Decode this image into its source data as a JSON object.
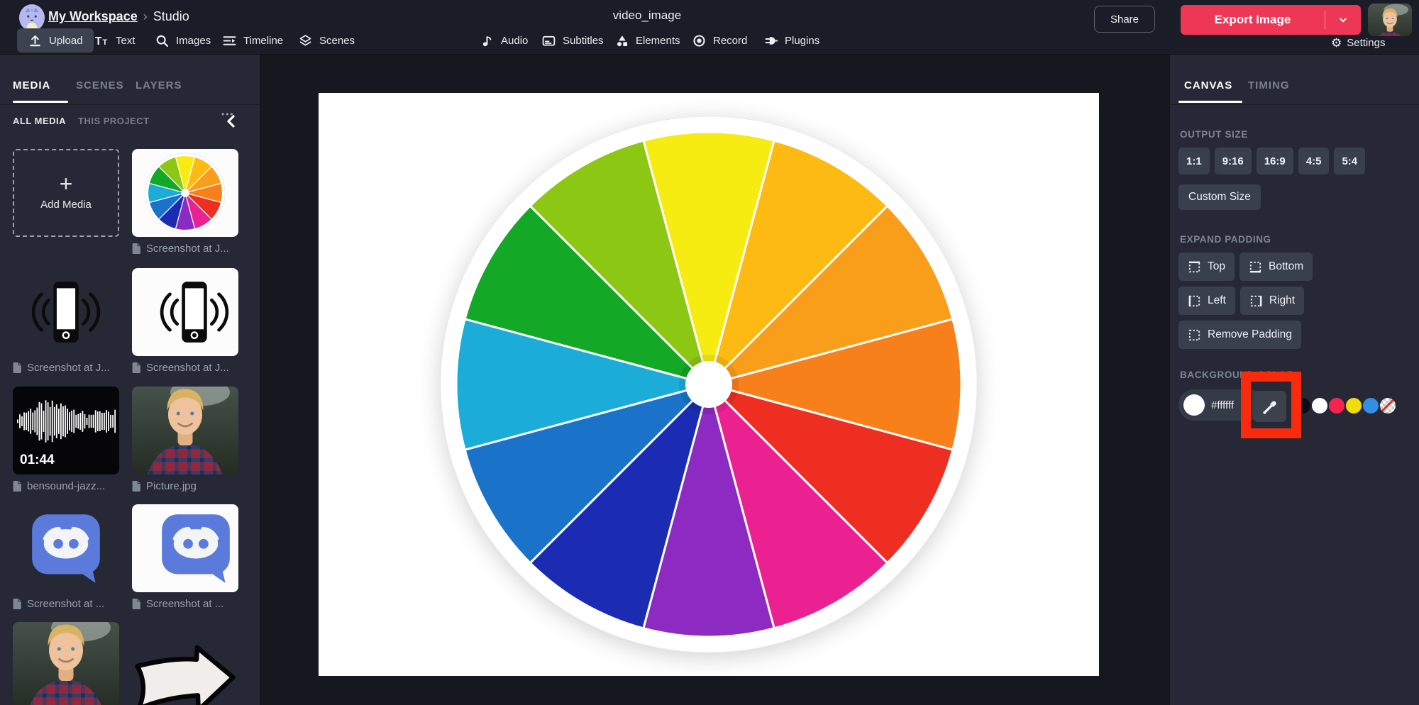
{
  "topbar": {
    "breadcrumb": {
      "workspace": "My Workspace",
      "separator": "›",
      "page": "Studio"
    },
    "title": "video_image",
    "share_label": "Share",
    "export_label": "Export Image",
    "settings_label": "Settings"
  },
  "icons": {
    "gear": "⚙"
  },
  "toolbar": {
    "items": [
      {
        "id": "upload",
        "label": "Upload",
        "icon": "upload-icon",
        "active": true
      },
      {
        "id": "text",
        "label": "Text",
        "icon": "text-icon"
      },
      {
        "id": "images",
        "label": "Images",
        "icon": "search-icon"
      },
      {
        "id": "timeline",
        "label": "Timeline",
        "icon": "timeline-icon"
      },
      {
        "id": "scenes",
        "label": "Scenes",
        "icon": "scenes-icon"
      },
      {
        "id": "audio",
        "label": "Audio",
        "icon": "audio-icon"
      },
      {
        "id": "subtitles",
        "label": "Subtitles",
        "icon": "subtitles-icon"
      },
      {
        "id": "elements",
        "label": "Elements",
        "icon": "elements-icon"
      },
      {
        "id": "record",
        "label": "Record",
        "icon": "record-icon"
      },
      {
        "id": "plugins",
        "label": "Plugins",
        "icon": "plugins-icon"
      }
    ]
  },
  "left_panel": {
    "tabs": [
      {
        "label": "MEDIA",
        "active": true
      },
      {
        "label": "SCENES",
        "active": false
      },
      {
        "label": "LAYERS",
        "active": false
      }
    ],
    "filters": [
      {
        "label": "ALL MEDIA",
        "active": true
      },
      {
        "label": "THIS PROJECT",
        "active": false
      }
    ],
    "overflow_menu": "•••",
    "add_media_label": "Add Media",
    "media": [
      {
        "kind": "color-wheel",
        "label": "Screenshot at J...",
        "tile_bg": "white"
      },
      {
        "kind": "phone",
        "label": "Screenshot at J...",
        "tile_bg": "transparent"
      },
      {
        "kind": "phone",
        "label": "Screenshot at J...",
        "tile_bg": "white"
      },
      {
        "kind": "audio",
        "label": "bensound-jazz...",
        "tile_bg": "black",
        "duration": "01:44"
      },
      {
        "kind": "photo",
        "label": "Picture.jpg",
        "tile_bg": "transparent"
      },
      {
        "kind": "discord",
        "label": "Screenshot at ...",
        "tile_bg": "transparent"
      },
      {
        "kind": "discord",
        "label": "Screenshot at ...",
        "tile_bg": "white"
      },
      {
        "kind": "photo",
        "label": "",
        "tile_bg": "transparent"
      },
      {
        "kind": "arrow",
        "label": "",
        "tile_bg": "transparent"
      }
    ]
  },
  "canvas": {
    "background": "#ffffff"
  },
  "wheel": {
    "segments": 12,
    "colors_clockwise_from_top": [
      "#f7ec11",
      "#fcba12",
      "#f99e1b",
      "#f8801b",
      "#ef2e22",
      "#ec2191",
      "#8c2ac2",
      "#1c2cb2",
      "#1a73c8",
      "#1badd8",
      "#13a825",
      "#8cc714"
    ],
    "center_color": "#ffffff",
    "ring_color": "#ffffff"
  },
  "right_panel": {
    "tabs": [
      {
        "label": "CANVAS",
        "active": true
      },
      {
        "label": "TIMING",
        "active": false
      }
    ],
    "output_size": {
      "label": "OUTPUT SIZE",
      "options": [
        "1:1",
        "9:16",
        "16:9",
        "4:5",
        "5:4"
      ],
      "custom_label": "Custom Size"
    },
    "expand_padding": {
      "label": "EXPAND PADDING",
      "buttons": [
        "Top",
        "Bottom",
        "Left",
        "Right"
      ],
      "remove_label": "Remove Padding"
    },
    "background_color": {
      "label": "BACKGROUND COLOR",
      "value": "#ffffff",
      "swatches": [
        "#0c0d12",
        "#ffffff",
        "#f4244e",
        "#f2dc0e",
        "#338fe3",
        "transparent"
      ]
    }
  },
  "annotation": {
    "shape": "rectangle",
    "color": "#fa2a0d"
  },
  "colors": {
    "topbar_bg": "#1a1c27",
    "panel_bg": "#262935",
    "workspace_bg": "#16181f",
    "button_bg": "#3a3f4c",
    "accent_export": "#ee3656",
    "discord_blue": "#5a7bdc",
    "canvas_bg": "#ffffff"
  }
}
